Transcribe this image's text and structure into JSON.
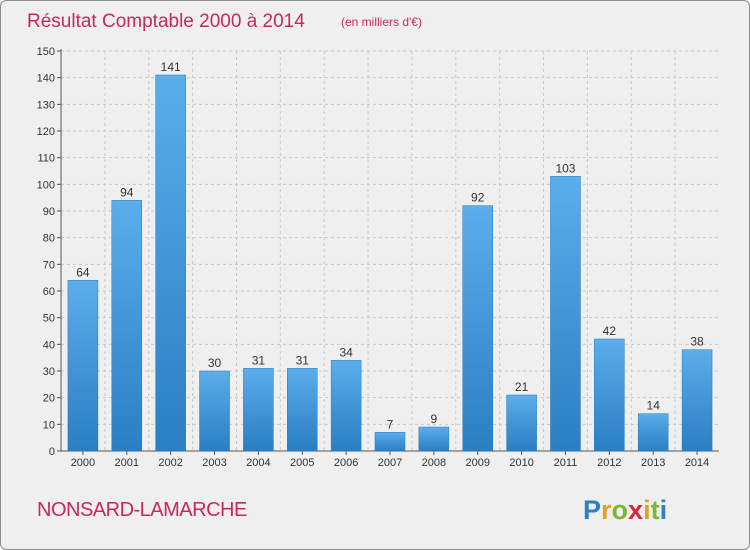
{
  "chart_data": {
    "type": "bar",
    "title": "Résultat Comptable 2000 à 2014",
    "subtitle": "(en milliers d'€)",
    "categories": [
      "2000",
      "2001",
      "2002",
      "2003",
      "2004",
      "2005",
      "2006",
      "2007",
      "2008",
      "2009",
      "2010",
      "2011",
      "2012",
      "2013",
      "2014"
    ],
    "values": [
      64,
      94,
      141,
      30,
      31,
      31,
      34,
      7,
      9,
      92,
      21,
      103,
      42,
      14,
      38
    ],
    "ylim": [
      0,
      150
    ],
    "yticks": [
      0,
      10,
      20,
      30,
      40,
      50,
      60,
      70,
      80,
      90,
      100,
      110,
      120,
      130,
      140,
      150
    ],
    "xlabel": "",
    "ylabel": "",
    "grid": true,
    "bar_color": "#3a95d9"
  },
  "town": "NONSARD-LAMARCHE",
  "logo": {
    "letters": [
      "P",
      "r",
      "o",
      "x",
      "i",
      "t",
      "i"
    ],
    "colors": [
      "#2f7fc4",
      "#e2a21a",
      "#7cb82f",
      "#d9263c",
      "#e2a21a",
      "#7cb82f",
      "#2f7fc4"
    ]
  }
}
